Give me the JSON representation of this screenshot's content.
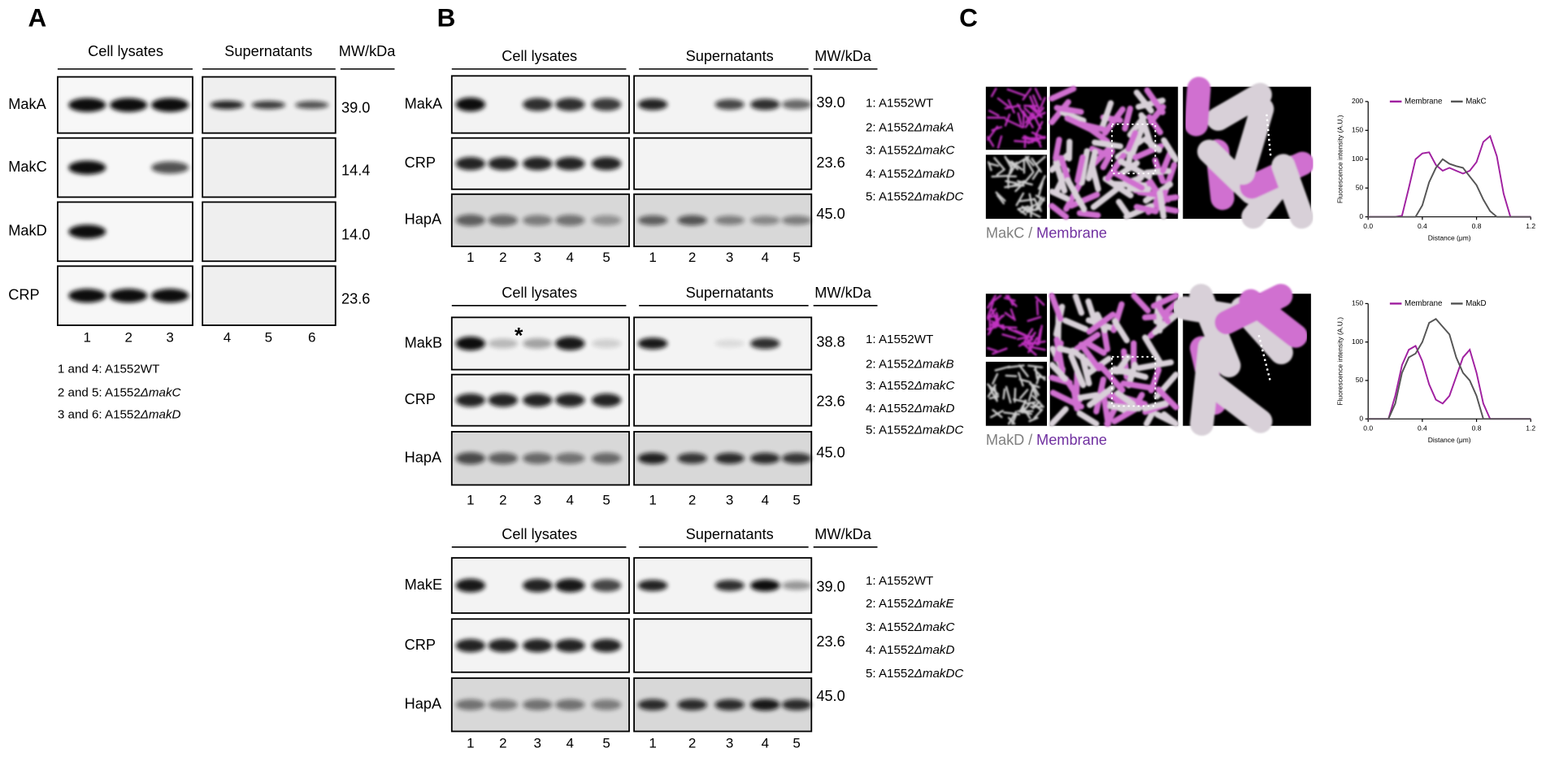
{
  "panel_A": {
    "label": "A",
    "headers": [
      "Cell lysates",
      "Supernatants",
      "MW/kDa"
    ],
    "rows": [
      "MakA",
      "MakC",
      "MakD",
      "CRP"
    ],
    "mw": [
      "39.0",
      "14.4",
      "14.0",
      "23.6"
    ],
    "lanes": [
      "1",
      "2",
      "3",
      "4",
      "5",
      "6"
    ],
    "legend": [
      {
        "text": "1 and 4: A1552WT"
      },
      {
        "text": "2 and 5: A1552",
        "italic": "ΔmakC"
      },
      {
        "text": "3 and 6: A1552",
        "italic": "ΔmakD"
      }
    ]
  },
  "panel_B": {
    "label": "B",
    "sections": [
      {
        "headers": [
          "Cell lysates",
          "Supernatants",
          "MW/kDa"
        ],
        "rows": [
          "MakA",
          "CRP",
          "HapA"
        ],
        "mw": [
          "39.0",
          "23.6",
          "45.0"
        ],
        "lanes": [
          "1",
          "2",
          "3",
          "4",
          "5"
        ],
        "legend": [
          {
            "text": "1: A1552WT"
          },
          {
            "text": "2: A1552",
            "italic": "ΔmakA"
          },
          {
            "text": "3: A1552",
            "italic": "ΔmakC"
          },
          {
            "text": "4: A1552",
            "italic": "ΔmakD"
          },
          {
            "text": "5: A1552",
            "italic": "ΔmakDC"
          }
        ]
      },
      {
        "headers": [
          "Cell lysates",
          "Supernatants",
          "MW/kDa"
        ],
        "rows": [
          "MakB",
          "CRP",
          "HapA"
        ],
        "mw": [
          "38.8",
          "23.6",
          "45.0"
        ],
        "lanes": [
          "1",
          "2",
          "3",
          "4",
          "5"
        ],
        "asterisk": "*",
        "legend": [
          {
            "text": "1: A1552WT"
          },
          {
            "text": "2: A1552",
            "italic": "ΔmakB"
          },
          {
            "text": "3: A1552",
            "italic": "ΔmakC"
          },
          {
            "text": "4: A1552",
            "italic": "ΔmakD"
          },
          {
            "text": "5: A1552",
            "italic": "ΔmakDC"
          }
        ]
      },
      {
        "headers": [
          "Cell lysates",
          "Supernatants",
          "MW/kDa"
        ],
        "rows": [
          "MakE",
          "CRP",
          "HapA"
        ],
        "mw": [
          "39.0",
          "23.6",
          "45.0"
        ],
        "lanes": [
          "1",
          "2",
          "3",
          "4",
          "5"
        ],
        "legend": [
          {
            "text": "1: A1552WT"
          },
          {
            "text": "2: A1552",
            "italic": "ΔmakE"
          },
          {
            "text": "3: A1552",
            "italic": "ΔmakC"
          },
          {
            "text": "4: A1552",
            "italic": "ΔmakD"
          },
          {
            "text": "5: A1552",
            "italic": "ΔmakDC"
          }
        ]
      }
    ]
  },
  "panel_C": {
    "label": "C",
    "images": [
      {
        "caption": {
          "protein": "MakC",
          "sep": "/",
          "membrane": "Membrane"
        },
        "plot": {
          "type": "line",
          "ylabel": "Fluorescence intensity (A.U.)",
          "xlabel": "Distance (μm)",
          "x": [
            0,
            0.05,
            0.1,
            0.15,
            0.2,
            0.25,
            0.3,
            0.35,
            0.4,
            0.45,
            0.5,
            0.55,
            0.6,
            0.65,
            0.7,
            0.75,
            0.8,
            0.85,
            0.9,
            0.95,
            1.0,
            1.05,
            1.1,
            1.15,
            1.2
          ],
          "series": [
            {
              "name": "Membrane",
              "color": "#a020a0",
              "values": [
                0,
                0,
                0,
                0,
                0,
                2,
                50,
                100,
                110,
                112,
                90,
                80,
                85,
                80,
                75,
                80,
                95,
                130,
                140,
                105,
                40,
                0,
                0,
                0,
                0
              ]
            },
            {
              "name": "MakC",
              "color": "#555555",
              "values": [
                0,
                0,
                0,
                0,
                0,
                0,
                0,
                0,
                20,
                60,
                85,
                100,
                92,
                88,
                85,
                70,
                55,
                30,
                10,
                0,
                0,
                0,
                0,
                0,
                0
              ]
            }
          ],
          "xlim": [
            0,
            1.2
          ],
          "ylim": [
            0,
            200
          ],
          "xticks": [
            {
              "value": 0,
              "label": "0.0"
            },
            0.4,
            0.8,
            1.2
          ],
          "yticks": [
            0,
            50,
            100,
            150,
            200
          ]
        }
      },
      {
        "caption": {
          "protein": "MakD",
          "sep": "/",
          "membrane": "Membrane"
        },
        "plot": {
          "type": "line",
          "ylabel": "Fluorescence intensity (A.U.)",
          "xlabel": "Distance (μm)",
          "x": [
            0,
            0.05,
            0.1,
            0.15,
            0.2,
            0.25,
            0.3,
            0.35,
            0.4,
            0.45,
            0.5,
            0.55,
            0.6,
            0.65,
            0.7,
            0.75,
            0.8,
            0.85,
            0.9,
            0.95,
            1.0,
            1.05,
            1.1,
            1.15,
            1.2
          ],
          "series": [
            {
              "name": "Membrane",
              "color": "#a020a0",
              "values": [
                0,
                0,
                0,
                0,
                30,
                70,
                90,
                95,
                75,
                45,
                25,
                20,
                30,
                55,
                80,
                90,
                60,
                20,
                0,
                0,
                0,
                0,
                0,
                0,
                0
              ]
            },
            {
              "name": "MakD",
              "color": "#555555",
              "values": [
                0,
                0,
                0,
                0,
                20,
                60,
                80,
                85,
                100,
                125,
                130,
                120,
                110,
                80,
                60,
                50,
                30,
                0,
                0,
                0,
                0,
                0,
                0,
                0,
                0
              ]
            }
          ],
          "xlim": [
            0,
            1.2
          ],
          "ylim": [
            0,
            150
          ],
          "xticks": [
            {
              "value": 0,
              "label": "0.0"
            },
            0.4,
            0.8,
            1.2
          ],
          "yticks": [
            0,
            50,
            100,
            150
          ]
        }
      }
    ]
  }
}
